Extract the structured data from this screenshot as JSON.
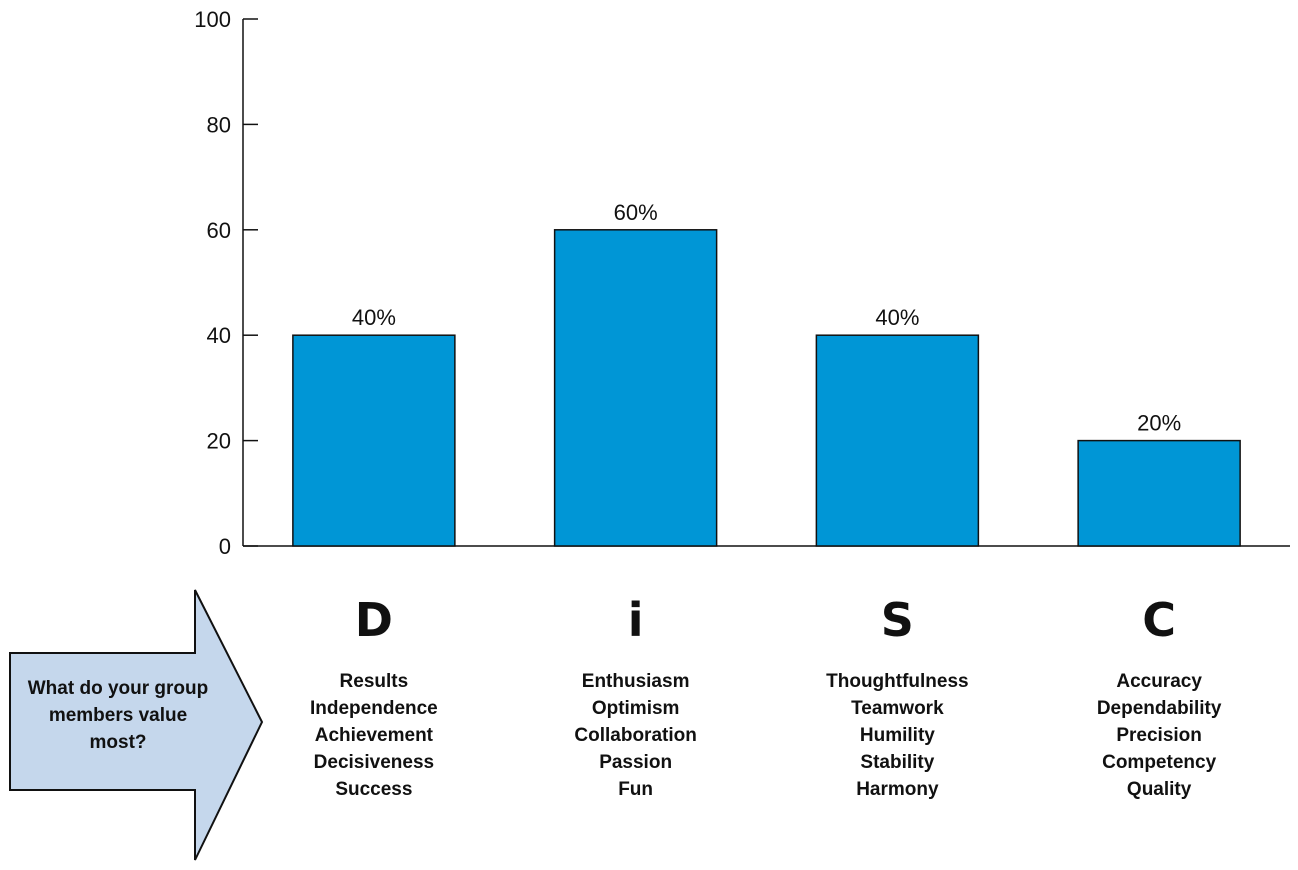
{
  "chart_data": {
    "type": "bar",
    "categories": [
      "D",
      "i",
      "S",
      "C"
    ],
    "values": [
      40,
      60,
      40,
      20
    ],
    "data_labels": [
      "40%",
      "60%",
      "40%",
      "20%"
    ],
    "yticks": [
      "0",
      "20",
      "40",
      "60",
      "80",
      "100"
    ],
    "ylim": [
      0,
      100
    ],
    "grid": false,
    "legend": "none",
    "bar_color": "#0096d6",
    "bar_stroke": "#111111"
  },
  "category_values": [
    [
      "Results",
      "Independence",
      "Achievement",
      "Decisiveness",
      "Success"
    ],
    [
      "Enthusiasm",
      "Optimism",
      "Collaboration",
      "Passion",
      "Fun"
    ],
    [
      "Thoughtfulness",
      "Teamwork",
      "Humility",
      "Stability",
      "Harmony"
    ],
    [
      "Accuracy",
      "Dependability",
      "Precision",
      "Competency",
      "Quality"
    ]
  ],
  "callout": {
    "text": "What do your group members value most?",
    "fill": "#c5d7ec"
  }
}
